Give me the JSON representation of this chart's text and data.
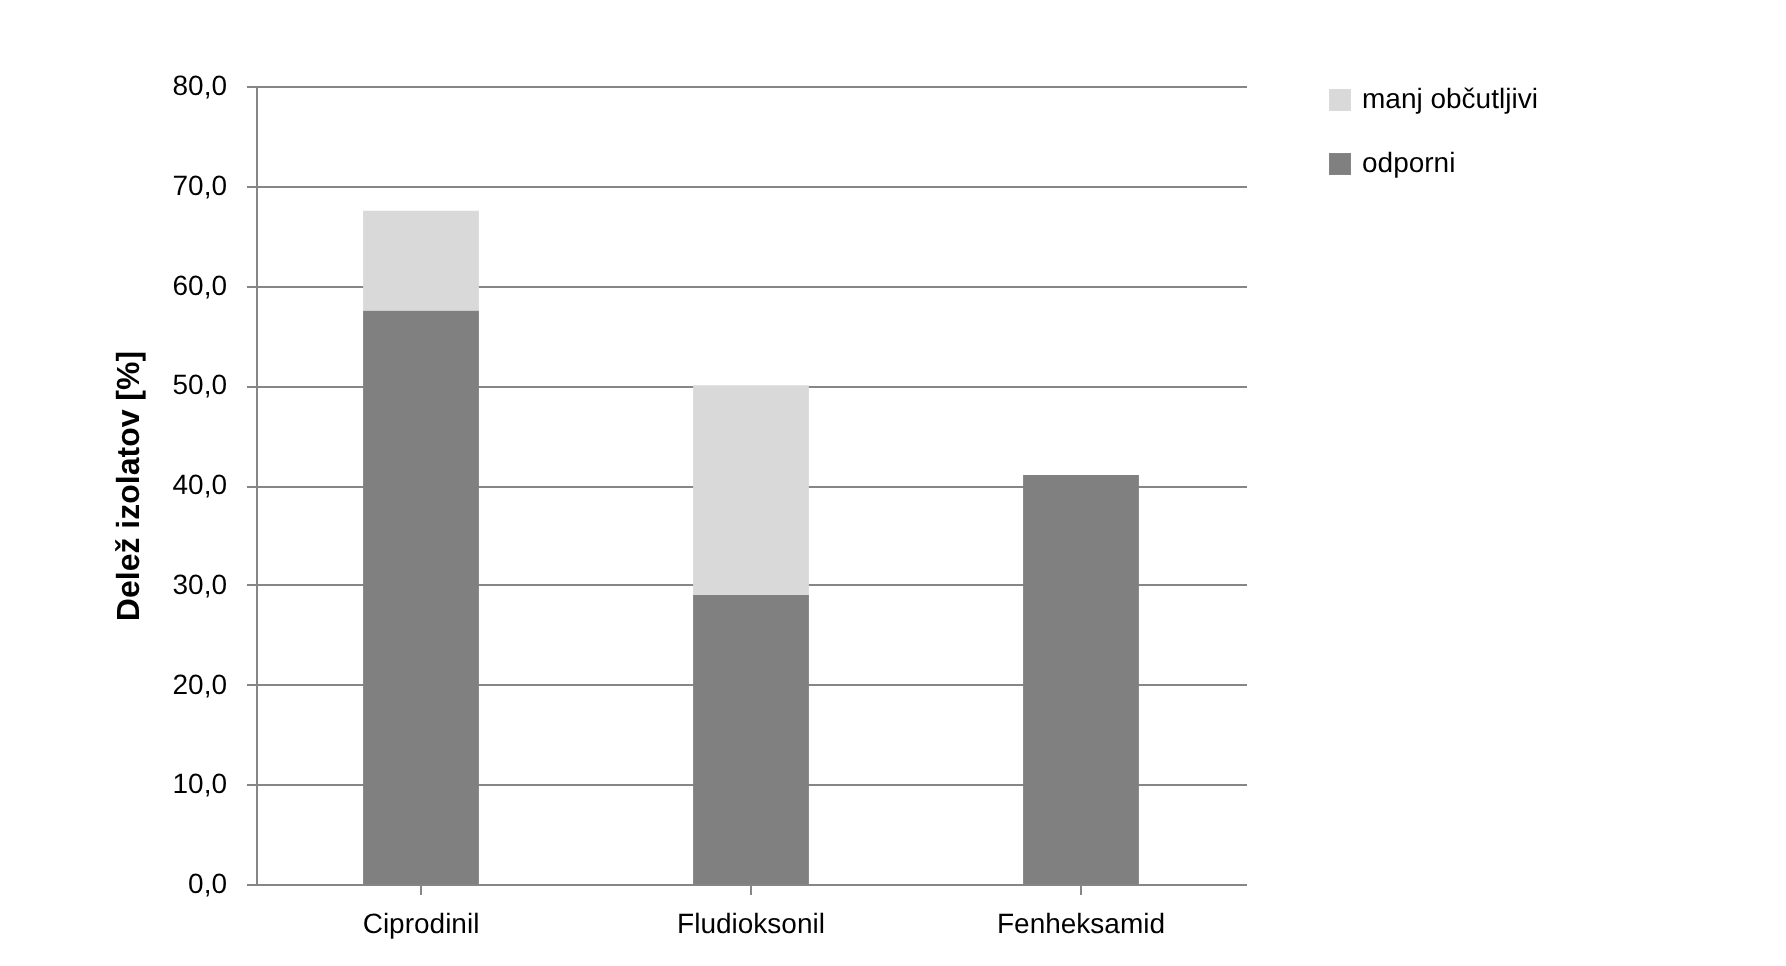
{
  "chart_data": {
    "type": "bar",
    "stacked": true,
    "ylabel": "Delež izolatov [%]",
    "categories": [
      "Ciprodinil",
      "Fludioksonil",
      "Fenheksamid"
    ],
    "series": [
      {
        "name": "odporni",
        "color": "#808080",
        "values": [
          57.5,
          29.0,
          41.0
        ]
      },
      {
        "name": "manj občutljivi",
        "color": "#d9d9d9",
        "values": [
          10.0,
          21.0,
          0
        ]
      }
    ],
    "ylim": [
      0,
      80
    ],
    "yticks": [
      {
        "value": 0,
        "label": "0,0"
      },
      {
        "value": 10,
        "label": "10,0"
      },
      {
        "value": 20,
        "label": "20,0"
      },
      {
        "value": 30,
        "label": "30,0"
      },
      {
        "value": 40,
        "label": "40,0"
      },
      {
        "value": 50,
        "label": "50,0"
      },
      {
        "value": 60,
        "label": "60,0"
      },
      {
        "value": 70,
        "label": "70,0"
      },
      {
        "value": 80,
        "label": "80,0"
      }
    ],
    "grid": "y",
    "legend": "right"
  }
}
